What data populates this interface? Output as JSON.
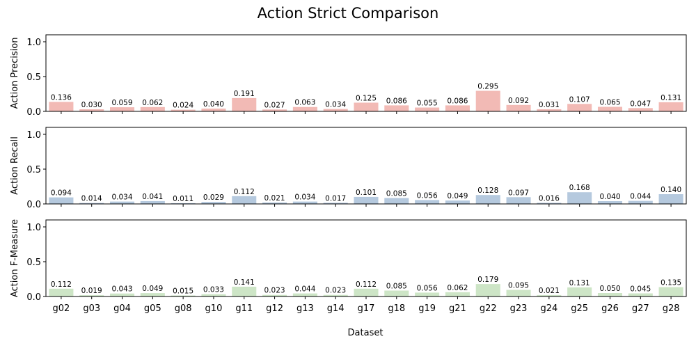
{
  "chart_data": {
    "type": "bar",
    "title": "Action Strict Comparison",
    "xlabel": "Dataset",
    "categories": [
      "g02",
      "g03",
      "g04",
      "g05",
      "g08",
      "g10",
      "g11",
      "g12",
      "g13",
      "g14",
      "g17",
      "g18",
      "g19",
      "g21",
      "g22",
      "g23",
      "g24",
      "g25",
      "g26",
      "g27",
      "g28"
    ],
    "ylim": [
      0,
      1.1
    ],
    "yticks": [
      "0.0",
      "0.5",
      "1.0"
    ],
    "grid": false,
    "panels": [
      {
        "ylabel": "Action Precision",
        "color": "#f2bab5",
        "values": [
          0.136,
          0.03,
          0.059,
          0.062,
          0.024,
          0.04,
          0.191,
          0.027,
          0.063,
          0.034,
          0.125,
          0.086,
          0.055,
          0.086,
          0.295,
          0.092,
          0.031,
          0.107,
          0.065,
          0.047,
          0.131
        ],
        "labels": [
          "0.136",
          "0.030",
          "0.059",
          "0.062",
          "0.024",
          "0.040",
          "0.191",
          "0.027",
          "0.063",
          "0.034",
          "0.125",
          "0.086",
          "0.055",
          "0.086",
          "0.295",
          "0.092",
          "0.031",
          "0.107",
          "0.065",
          "0.047",
          "0.131"
        ]
      },
      {
        "ylabel": "Action Recall",
        "color": "#b5c9de",
        "values": [
          0.094,
          0.014,
          0.034,
          0.041,
          0.011,
          0.029,
          0.112,
          0.021,
          0.034,
          0.017,
          0.101,
          0.085,
          0.056,
          0.049,
          0.128,
          0.097,
          0.016,
          0.168,
          0.04,
          0.044,
          0.14
        ],
        "labels": [
          "0.094",
          "0.014",
          "0.034",
          "0.041",
          "0.011",
          "0.029",
          "0.112",
          "0.021",
          "0.034",
          "0.017",
          "0.101",
          "0.085",
          "0.056",
          "0.049",
          "0.128",
          "0.097",
          "0.016",
          "0.168",
          "0.040",
          "0.044",
          "0.140"
        ]
      },
      {
        "ylabel": "Action F-Measure",
        "color": "#cde5c6",
        "values": [
          0.112,
          0.019,
          0.043,
          0.049,
          0.015,
          0.033,
          0.141,
          0.023,
          0.044,
          0.023,
          0.112,
          0.085,
          0.056,
          0.062,
          0.179,
          0.095,
          0.021,
          0.131,
          0.05,
          0.045,
          0.135
        ],
        "labels": [
          "0.112",
          "0.019",
          "0.043",
          "0.049",
          "0.015",
          "0.033",
          "0.141",
          "0.023",
          "0.044",
          "0.023",
          "0.112",
          "0.085",
          "0.056",
          "0.062",
          "0.179",
          "0.095",
          "0.021",
          "0.131",
          "0.050",
          "0.045",
          "0.135"
        ]
      }
    ]
  }
}
